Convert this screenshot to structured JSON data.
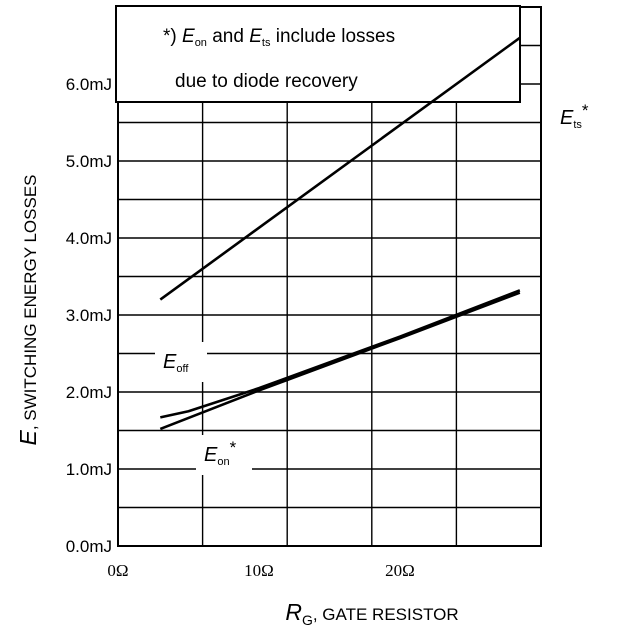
{
  "chart_data": {
    "type": "line",
    "xlabel": {
      "main": "R",
      "sub": "G",
      "rest": ", GATE RESISTOR"
    },
    "ylabel": {
      "main": "E",
      "rest": ", SWITCHING ENERGY LOSSES"
    },
    "xlim": [
      0,
      30
    ],
    "ylim": [
      0,
      7
    ],
    "x_ticks": [
      {
        "value": 0,
        "label": "0Ω"
      },
      {
        "value": 10,
        "label": "10Ω"
      },
      {
        "value": 20,
        "label": "20Ω"
      }
    ],
    "y_ticks": [
      {
        "value": 0,
        "label": "0.0mJ"
      },
      {
        "value": 1,
        "label": "1.0mJ"
      },
      {
        "value": 2,
        "label": "2.0mJ"
      },
      {
        "value": 3,
        "label": "3.0mJ"
      },
      {
        "value": 4,
        "label": "4.0mJ"
      },
      {
        "value": 5,
        "label": "5.0mJ"
      },
      {
        "value": 6,
        "label": "6.0mJ"
      }
    ],
    "grid": true,
    "series": [
      {
        "name": "Ets*",
        "label": {
          "main": "E",
          "sub": "ts",
          "star": "*"
        },
        "x": [
          3,
          28.5
        ],
        "y": [
          3.2,
          6.6
        ]
      },
      {
        "name": "Eoff",
        "label": {
          "main": "E",
          "sub": "off",
          "star": ""
        },
        "x": [
          3,
          5,
          10,
          20,
          28.5
        ],
        "y": [
          1.67,
          1.75,
          2.05,
          2.72,
          3.32
        ]
      },
      {
        "name": "Eon*",
        "label": {
          "main": "E",
          "sub": "on",
          "star": "*"
        },
        "x": [
          3,
          10,
          20,
          28.5
        ],
        "y": [
          1.52,
          2.02,
          2.7,
          3.29
        ]
      }
    ],
    "note": {
      "line1": {
        "prefix": "*) ",
        "e1": "E",
        "s1": "on",
        "mid": " and ",
        "e2": "E",
        "s2": "ts",
        "rest": " include losses"
      },
      "line2": "due to diode recovery"
    }
  }
}
